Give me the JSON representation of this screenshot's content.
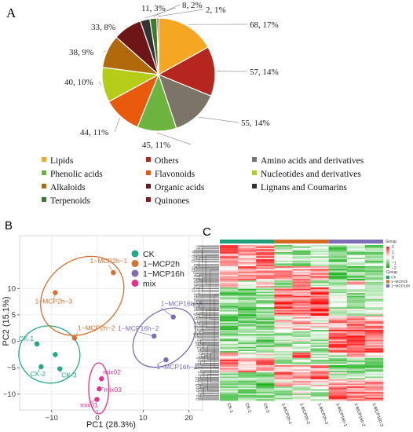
{
  "panel_labels": {
    "a": "A",
    "b": "B",
    "c": "C"
  },
  "chart_data": [
    {
      "type": "pie",
      "panel": "A",
      "slices": [
        {
          "name": "Lipids",
          "count": 68,
          "percent": 17,
          "label": "68, 17%",
          "color": "#F5A623"
        },
        {
          "name": "Others",
          "count": 57,
          "percent": 14,
          "label": "57, 14%",
          "color": "#B5261E"
        },
        {
          "name": "Amino acids and derivatives",
          "count": 55,
          "percent": 14,
          "label": "55, 14%",
          "color": "#7B7467"
        },
        {
          "name": "Phenolic acids",
          "count": 45,
          "percent": 11,
          "label": "45, 11%",
          "color": "#6DB33F"
        },
        {
          "name": "Flavonoids",
          "count": 44,
          "percent": 11,
          "label": "44, 11%",
          "color": "#E8590C"
        },
        {
          "name": "Nucleotides and derivatives",
          "count": 40,
          "percent": 10,
          "label": "40, 10%",
          "color": "#B5CC18"
        },
        {
          "name": "Alkaloids",
          "count": 38,
          "percent": 9,
          "label": "38, 9%",
          "color": "#B06A0B"
        },
        {
          "name": "Organic acids",
          "count": 33,
          "percent": 8,
          "label": "33, 8%",
          "color": "#6E1518"
        },
        {
          "name": "Lignans and Coumarins",
          "count": 11,
          "percent": 3,
          "label": "11, 3%",
          "color": "#333333"
        },
        {
          "name": "Terpenoids",
          "count": 8,
          "percent": 2,
          "label": "8, 2%",
          "color": "#3C7A2E"
        },
        {
          "name": "Quinones",
          "count": 2,
          "percent": 1,
          "label": "2, 1%",
          "color": "#8B1A1A"
        }
      ],
      "legend_order": [
        "Lipids",
        "Others",
        "Amino acids and derivatives",
        "Phenolic acids",
        "Flavonoids",
        "Nucleotides and derivatives",
        "Alkaloids",
        "Organic acids",
        "Lignans and Coumarins",
        "Terpenoids",
        "Quinones"
      ]
    },
    {
      "type": "scatter",
      "panel": "B",
      "xlabel": "PC1 (28.3%)",
      "ylabel": "PC2 (15.1%)",
      "xlim": [
        -17,
        23
      ],
      "ylim": [
        -13,
        20
      ],
      "xticks": [
        -10,
        0,
        10,
        20
      ],
      "yticks": [
        -10,
        -5,
        0,
        5,
        10
      ],
      "grid": true,
      "legend_position": "top-right",
      "series": [
        {
          "name": "CK",
          "color": "#22A884",
          "points": [
            {
              "x": -13.2,
              "y": -0.5,
              "label": "CK-1"
            },
            {
              "x": -12.3,
              "y": -4.8,
              "label": "CK-2"
            },
            {
              "x": -8.2,
              "y": -5.2,
              "label": "CK-3"
            },
            {
              "x": -9.2,
              "y": -2.5
            }
          ],
          "ellipse": {
            "cx": -10.5,
            "cy": -2.5,
            "rx": 6.7,
            "ry": 5.4,
            "angle": 10
          }
        },
        {
          "name": "1−MCP2h",
          "color": "#D86F2E",
          "points": [
            {
              "x": 3.5,
              "y": 13.0,
              "label": "1−MCP2h−1"
            },
            {
              "x": -9.2,
              "y": 9.2,
              "label": "1−MCP2h−3"
            },
            {
              "x": -5.0,
              "y": 0.6,
              "label": "1−MCP2h−2"
            }
          ],
          "ellipse": {
            "cx": -3.3,
            "cy": 8.6,
            "rx": 9.8,
            "ry": 6.8,
            "angle": -38
          }
        },
        {
          "name": "1−MCP16h",
          "color": "#7E6DB5",
          "points": [
            {
              "x": 16.6,
              "y": 4.6,
              "label": "1−MCP16h−3"
            },
            {
              "x": 12.4,
              "y": 1.0,
              "label": "1−MCP16h−2"
            },
            {
              "x": 15.0,
              "y": -3.5,
              "label": "1−MCP16h−1"
            }
          ],
          "ellipse": {
            "cx": 14.6,
            "cy": 0.7,
            "rx": 7.6,
            "ry": 4.8,
            "angle": -40
          }
        },
        {
          "name": "mix",
          "color": "#E6308C",
          "points": [
            {
              "x": 0.9,
              "y": -7.1,
              "label": "mix02"
            },
            {
              "x": 0.4,
              "y": -9.0,
              "label": "mix03"
            },
            {
              "x": -0.1,
              "y": -11.0,
              "label": "mix01"
            }
          ],
          "ellipse": {
            "cx": 0.3,
            "cy": -8.9,
            "rx": 2.2,
            "ry": 4.8,
            "angle": 0
          }
        }
      ]
    },
    {
      "type": "heatmap",
      "panel": "C",
      "columns": [
        "CK-1",
        "CK-2",
        "CK-3",
        "1-MCP2h-1",
        "1-MCP2h-2",
        "1-MCP2h-3",
        "1-MCP16h-1",
        "1-MCP16h-2",
        "1-MCP16h-3"
      ],
      "groups": [
        {
          "name": "CK",
          "color": "#1F9E78",
          "columns": [
            0,
            1,
            2
          ]
        },
        {
          "name": "1−MCP2h",
          "color": "#D5691F",
          "columns": [
            3,
            4,
            5
          ]
        },
        {
          "name": "1−MCP16h",
          "color": "#7D6DB5",
          "columns": [
            6,
            7,
            8
          ]
        }
      ],
      "legend_group_title": "Group",
      "colorbar": {
        "ticks": [
          2,
          1,
          0,
          -1,
          -2
        ],
        "max_color": "#FF2020",
        "mid_color": "#FFFFFF",
        "min_color": "#0A9E0A"
      }
    }
  ]
}
